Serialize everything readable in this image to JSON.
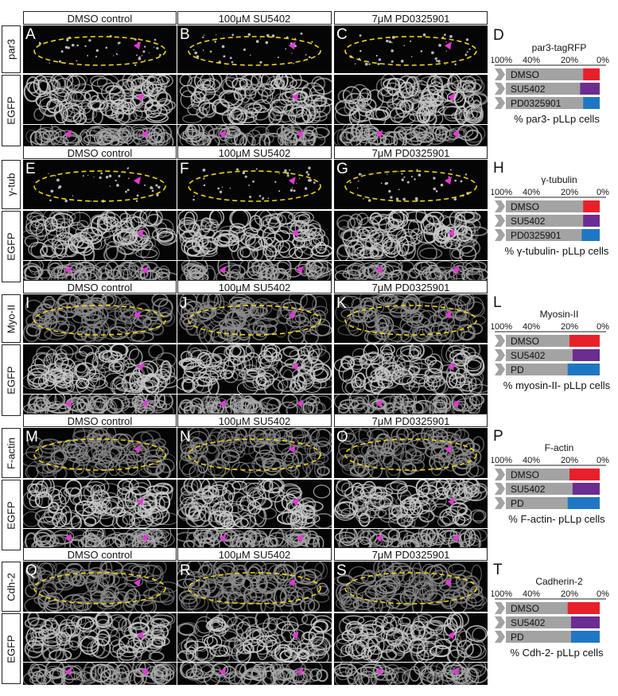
{
  "columns": [
    "DMSO control",
    "100μM SU5402",
    "7μM PD0325901"
  ],
  "egfp_label": "EGFP",
  "rows": [
    {
      "marker": "par3",
      "panels": [
        "A",
        "B",
        "C"
      ],
      "chart": {
        "letter": "D",
        "title": "par3-tagRFP",
        "ticks": [
          "100%",
          "40%",
          "20%",
          "0%"
        ],
        "bars": [
          {
            "label": "DMSO",
            "value": 11,
            "color": "#e8202a"
          },
          {
            "label": "SU5402",
            "value": 13,
            "color": "#6b2d90"
          },
          {
            "label": "PD0325901",
            "value": 11,
            "color": "#1f77c3"
          }
        ],
        "caption": "% par3- pLLp cells"
      }
    },
    {
      "marker": "γ-tub",
      "panels": [
        "E",
        "F",
        "G"
      ],
      "chart": {
        "letter": "H",
        "title": "γ-tubulin",
        "ticks": [
          "100%",
          "40%",
          "20%",
          "0%"
        ],
        "bars": [
          {
            "label": "DMSO",
            "value": 11,
            "color": "#e8202a"
          },
          {
            "label": "SU5402",
            "value": 11,
            "color": "#6b2d90"
          },
          {
            "label": "PD0325901",
            "value": 12,
            "color": "#1f77c3"
          }
        ],
        "caption": "% γ-tubulin- pLLp cells"
      }
    },
    {
      "marker": "Myo-II",
      "panels": [
        "I",
        "J",
        "K"
      ],
      "chart": {
        "letter": "L",
        "title": "Myosin-II",
        "ticks": [
          "100%",
          "40%",
          "20%",
          "0%"
        ],
        "bars": [
          {
            "label": "DMSO",
            "value": 20,
            "color": "#e8202a"
          },
          {
            "label": "SU5402",
            "value": 18,
            "color": "#6b2d90"
          },
          {
            "label": "PD",
            "value": 21,
            "color": "#1f77c3"
          }
        ],
        "caption": "% myosin-II- pLLp cells"
      }
    },
    {
      "marker": "F-actin",
      "panels": [
        "M",
        "N",
        "O"
      ],
      "chart": {
        "letter": "P",
        "title": "F-actin",
        "ticks": [
          "100%",
          "40%",
          "20%",
          "0%"
        ],
        "bars": [
          {
            "label": "DMSO",
            "value": 20,
            "color": "#e8202a"
          },
          {
            "label": "SU5402",
            "value": 18,
            "color": "#6b2d90"
          },
          {
            "label": "PD",
            "value": 21,
            "color": "#1f77c3"
          }
        ],
        "caption": "% F-actin- pLLp cells"
      }
    },
    {
      "marker": "Cdh-2",
      "panels": [
        "Q",
        "R",
        "S"
      ],
      "chart": {
        "letter": "T",
        "title": "Cadherin-2",
        "ticks": [
          "100%",
          "40%",
          "20%",
          "0%"
        ],
        "bars": [
          {
            "label": "DMSO",
            "value": 21,
            "color": "#e8202a"
          },
          {
            "label": "SU5402",
            "value": 19,
            "color": "#6b2d90"
          },
          {
            "label": "PD",
            "value": 19,
            "color": "#1f77c3"
          }
        ],
        "caption": "% Cdh-2- pLLp cells"
      }
    }
  ],
  "colors": {
    "outline": "#f2d21b",
    "arrowhead": "#e33ad6",
    "bar_gray": "#a3a3a3",
    "bar_bg": "#cfcfcf"
  }
}
